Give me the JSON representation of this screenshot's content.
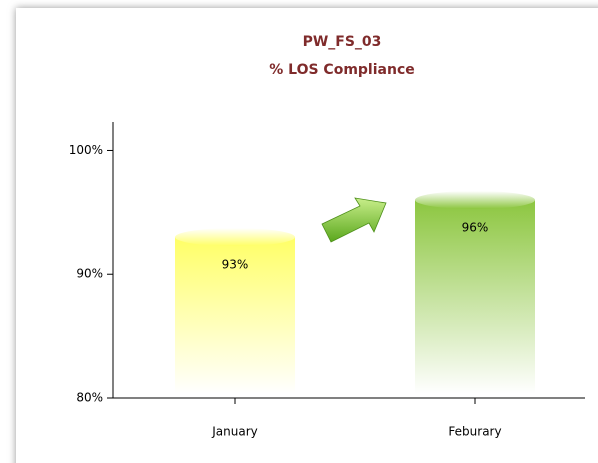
{
  "chart_data": {
    "type": "bar",
    "title": "PW_FS_03",
    "subtitle": "% LOS Compliance",
    "categories": [
      "January",
      "Feburary"
    ],
    "values": [
      93,
      96
    ],
    "value_labels": [
      "93%",
      "96%"
    ],
    "colors": [
      "#ffff66",
      "#8cc63f"
    ],
    "ylim": [
      80,
      102.3
    ],
    "yticks": [
      {
        "value": 80,
        "label": "80%"
      },
      {
        "value": 90,
        "label": "90%"
      },
      {
        "value": 100,
        "label": "100%"
      }
    ]
  }
}
